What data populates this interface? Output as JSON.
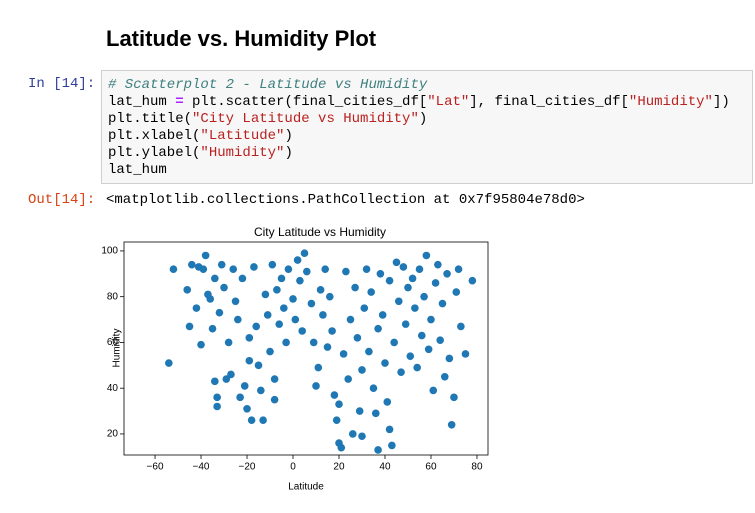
{
  "heading": "Latitude vs. Humidity Plot",
  "in_prompt": "In [14]:",
  "out_prompt": "Out[14]:",
  "code": [
    [
      "# Scatterplot 2 - Latitude vs Humidity"
    ],
    [
      "lat_hum ",
      "=",
      " plt.scatter(final_cities_df[",
      "\"Lat\"",
      "], final_cities_df[",
      "\"Humidity\"",
      "])"
    ],
    [
      "plt.title(",
      "\"City Latitude vs Humidity\"",
      ")"
    ],
    [
      "plt.xlabel(",
      "\"Latitude\"",
      ")"
    ],
    [
      "plt.ylabel(",
      "\"Humidity\"",
      ")"
    ],
    [
      "lat_hum"
    ]
  ],
  "output": "<matplotlib.collections.PathCollection at 0x7f95804e78d0>",
  "chart_data": {
    "type": "scatter",
    "title": "City Latitude vs Humidity",
    "x_label": "Latitude",
    "y_label": "Humidity",
    "color": "#1f77b4",
    "xlim": [
      -73.5,
      84.8
    ],
    "ylim": [
      10.8,
      103.9
    ],
    "xticks": [
      {
        "value": -60,
        "label": "−60"
      },
      {
        "value": -40,
        "label": "−40"
      },
      {
        "value": -20,
        "label": "−20"
      },
      0,
      20,
      40,
      60,
      80
    ],
    "yticks": [
      20,
      40,
      60,
      80,
      100
    ],
    "x": [
      -54,
      -52,
      -46,
      -45,
      -44,
      -42,
      -41,
      -40,
      -39,
      -38,
      -37,
      -36,
      -35,
      -34,
      -34,
      -33,
      -33,
      -32,
      -31,
      -30,
      -29,
      -28,
      -27,
      -26,
      -25,
      -24,
      -23,
      -22,
      -21,
      -20,
      -19,
      -19,
      -18,
      -17,
      -16,
      -15,
      -14,
      -13,
      -12,
      -11,
      -10,
      -9,
      -8,
      -8,
      -7,
      -6,
      -5,
      -4,
      -3,
      -2,
      0,
      1,
      2,
      3,
      4,
      5,
      6,
      8,
      9,
      10,
      11,
      12,
      13,
      14,
      15,
      16,
      17,
      18,
      19,
      20,
      20,
      21,
      22,
      23,
      24,
      25,
      26,
      27,
      28,
      29,
      30,
      30,
      31,
      32,
      33,
      34,
      35,
      36,
      37,
      37,
      38,
      39,
      40,
      41,
      42,
      42,
      43,
      44,
      45,
      46,
      47,
      48,
      49,
      50,
      51,
      52,
      53,
      54,
      55,
      56,
      57,
      58,
      59,
      60,
      61,
      62,
      63,
      64,
      65,
      66,
      67,
      68,
      69,
      70,
      71,
      72,
      73,
      75,
      78
    ],
    "values": [
      51,
      92,
      83,
      67,
      94,
      75,
      93,
      59,
      92,
      98,
      81,
      79,
      66,
      88,
      43,
      36,
      32,
      73,
      94,
      84,
      44,
      60,
      46,
      92,
      78,
      70,
      36,
      88,
      41,
      31,
      62,
      52,
      26,
      93,
      67,
      50,
      39,
      26,
      81,
      72,
      56,
      94,
      44,
      35,
      83,
      68,
      88,
      75,
      60,
      92,
      79,
      70,
      96,
      87,
      65,
      99,
      91,
      77,
      60,
      41,
      49,
      83,
      72,
      92,
      58,
      80,
      65,
      37,
      26,
      16,
      33,
      14,
      55,
      91,
      44,
      70,
      20,
      84,
      62,
      30,
      48,
      19,
      75,
      92,
      56,
      82,
      40,
      29,
      66,
      13,
      90,
      72,
      51,
      34,
      87,
      22,
      15,
      60,
      95,
      78,
      47,
      93,
      68,
      84,
      54,
      88,
      75,
      49,
      92,
      63,
      80,
      98,
      57,
      70,
      39,
      86,
      94,
      61,
      77,
      45,
      90,
      53,
      24,
      36,
      82,
      92,
      67,
      55,
      87
    ]
  }
}
